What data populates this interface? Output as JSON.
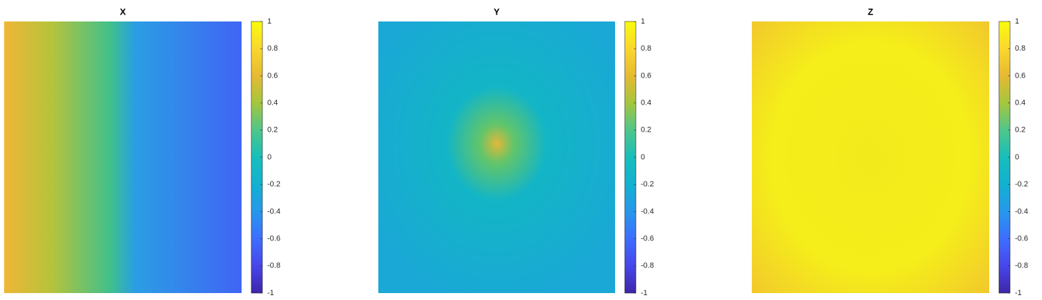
{
  "chart_data": [
    {
      "type": "image",
      "title": "X",
      "colormap": "parula",
      "clim": [
        -1,
        1
      ],
      "cticks": [
        -1,
        -0.8,
        -0.6,
        -0.4,
        -0.2,
        0,
        0.2,
        0.4,
        0.6,
        0.8,
        1
      ]
    },
    {
      "type": "image",
      "title": "Y",
      "colormap": "parula",
      "clim": [
        -1,
        1
      ],
      "cticks": [
        -1,
        -0.8,
        -0.6,
        -0.4,
        -0.2,
        0,
        0.2,
        0.4,
        0.6,
        0.8,
        1
      ]
    },
    {
      "type": "image",
      "title": "Z",
      "colormap": "parula",
      "clim": [
        -1,
        1
      ],
      "cticks": [
        -1,
        -0.8,
        -0.6,
        -0.4,
        -0.2,
        0,
        0.2,
        0.4,
        0.6,
        0.8,
        1
      ]
    }
  ]
}
